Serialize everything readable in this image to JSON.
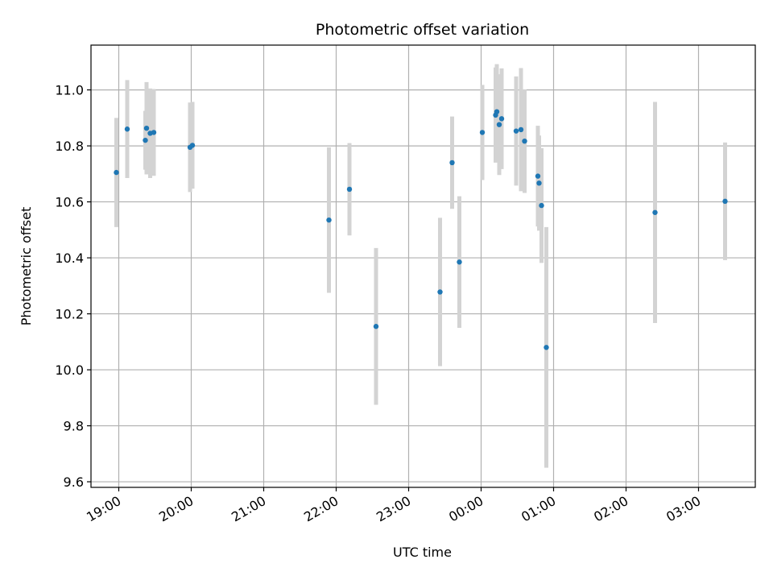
{
  "chart_data": {
    "type": "scatter",
    "title": "Photometric offset variation",
    "xlabel": "UTC time",
    "ylabel": "Photometric offset",
    "grid": true,
    "x_unit": "UTC time (HH:MM), times after midnight fall on the following day",
    "xlim": [
      "18:37",
      "03:47"
    ],
    "ylim": [
      9.58,
      11.16
    ],
    "x_ticks": [
      "19:00",
      "20:00",
      "21:00",
      "22:00",
      "23:00",
      "00:00",
      "01:00",
      "02:00",
      "03:00"
    ],
    "y_ticks": [
      "9.6",
      "9.8",
      "10.0",
      "10.2",
      "10.4",
      "10.6",
      "10.8",
      "11.0"
    ],
    "colors": {
      "point": "#1f77b4",
      "errorbar": "#d3d3d3",
      "grid": "#b0b0b0"
    },
    "points": [
      {
        "x": "18:58",
        "y": 10.705,
        "err": 0.195
      },
      {
        "x": "19:07",
        "y": 10.86,
        "err": 0.175
      },
      {
        "x": "19:22",
        "y": 10.82,
        "err": 0.105
      },
      {
        "x": "19:23",
        "y": 10.863,
        "err": 0.165
      },
      {
        "x": "19:26",
        "y": 10.845,
        "err": 0.16
      },
      {
        "x": "19:29",
        "y": 10.848,
        "err": 0.155
      },
      {
        "x": "19:59",
        "y": 10.795,
        "err": 0.16
      },
      {
        "x": "20:01",
        "y": 10.802,
        "err": 0.155
      },
      {
        "x": "21:54",
        "y": 10.535,
        "err": 0.26
      },
      {
        "x": "22:11",
        "y": 10.645,
        "err": 0.165
      },
      {
        "x": "22:33",
        "y": 10.155,
        "err": 0.28
      },
      {
        "x": "23:26",
        "y": 10.278,
        "err": 0.265
      },
      {
        "x": "23:36",
        "y": 10.74,
        "err": 0.165
      },
      {
        "x": "23:42",
        "y": 10.385,
        "err": 0.235
      },
      {
        "x": "00:01",
        "y": 10.848,
        "err": 0.17
      },
      {
        "x": "00:12",
        "y": 10.91,
        "err": 0.17
      },
      {
        "x": "00:13",
        "y": 10.922,
        "err": 0.17
      },
      {
        "x": "00:15",
        "y": 10.876,
        "err": 0.18
      },
      {
        "x": "00:17",
        "y": 10.897,
        "err": 0.18
      },
      {
        "x": "00:29",
        "y": 10.853,
        "err": 0.195
      },
      {
        "x": "00:33",
        "y": 10.858,
        "err": 0.22
      },
      {
        "x": "00:36",
        "y": 10.817,
        "err": 0.185
      },
      {
        "x": "00:47",
        "y": 10.692,
        "err": 0.18
      },
      {
        "x": "00:48",
        "y": 10.667,
        "err": 0.17
      },
      {
        "x": "00:50",
        "y": 10.587,
        "err": 0.205
      },
      {
        "x": "00:54",
        "y": 10.08,
        "err": 0.43
      },
      {
        "x": "02:24",
        "y": 10.562,
        "err": 0.395
      },
      {
        "x": "03:22",
        "y": 10.602,
        "err": 0.21
      }
    ]
  }
}
